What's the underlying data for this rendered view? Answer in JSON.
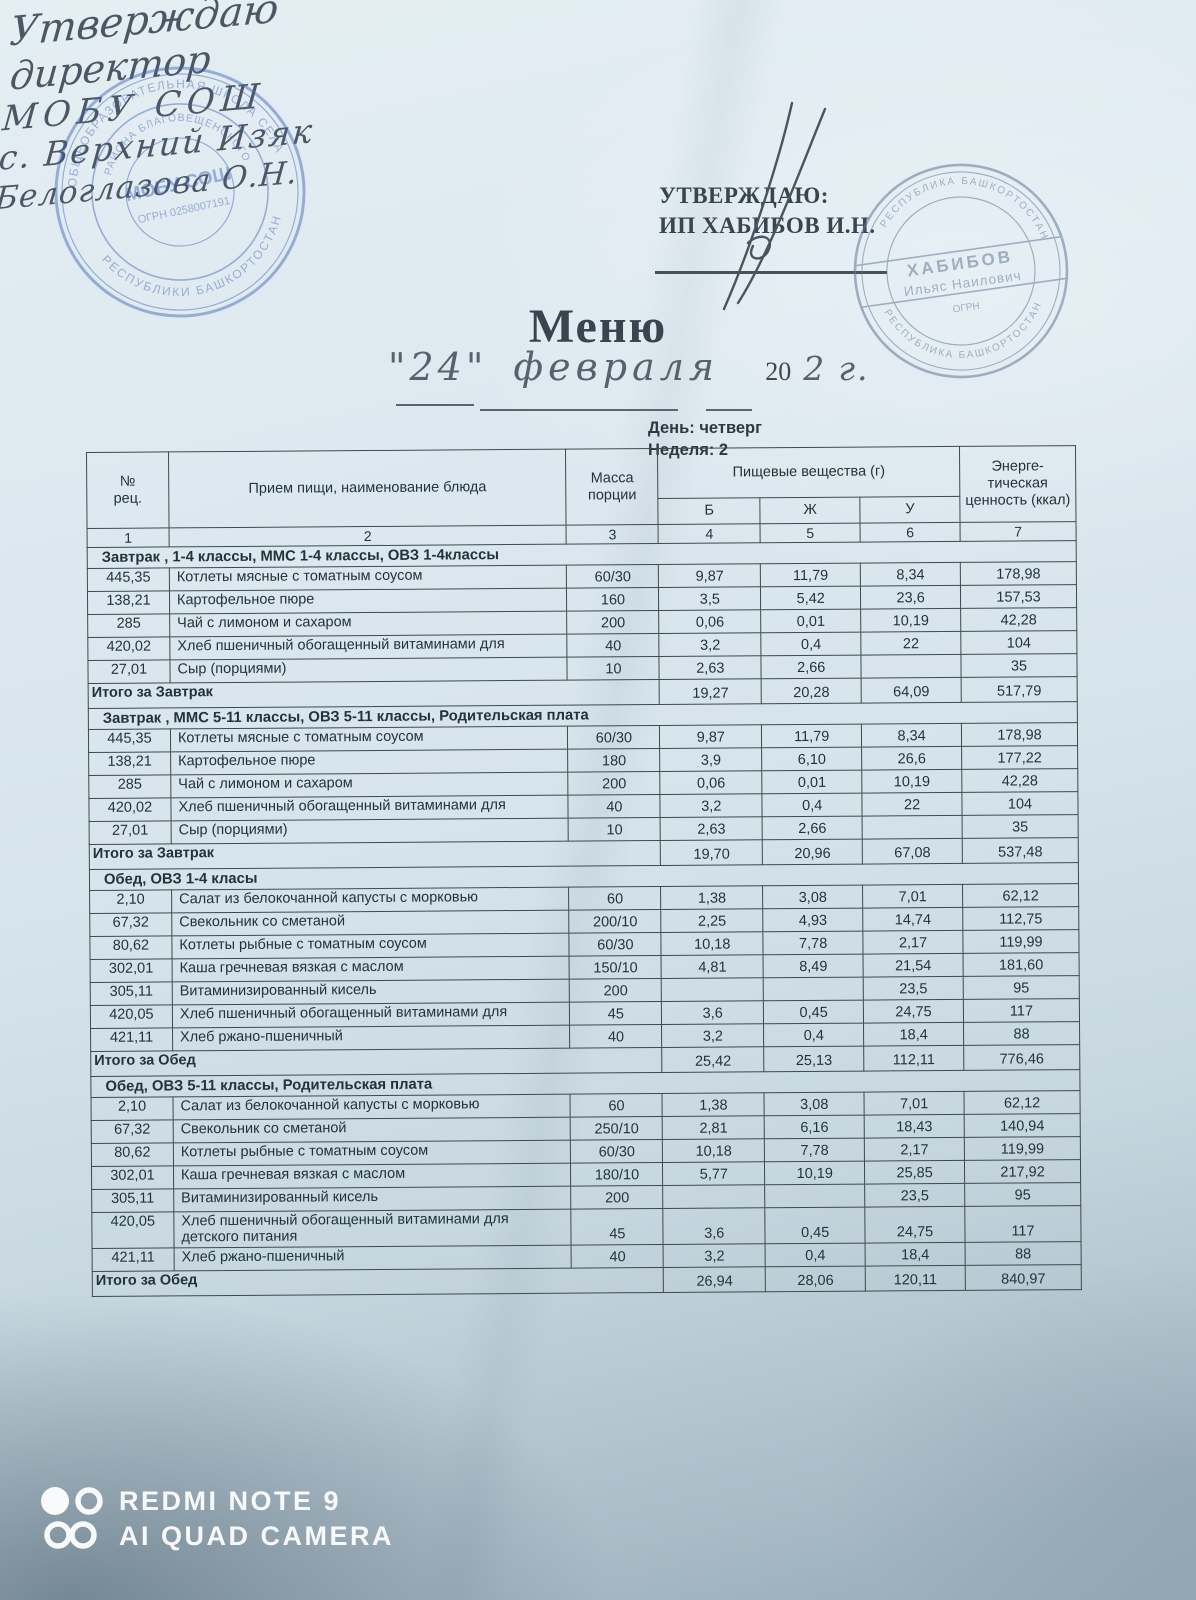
{
  "handwriting": {
    "line1": "Утверждаю",
    "line2": "директор",
    "line3": "МОБУ СОШ",
    "line4": "с. Верхний Изяк",
    "line5": "Белоглазова О.Н."
  },
  "approval": {
    "line1": "УТВЕРЖДАЮ:",
    "line2": "ИП ХАБИБОВ И.Н."
  },
  "title": "Меню",
  "date": {
    "day": "\"24\"",
    "month": "февраля",
    "year_printed": "20",
    "year_written": "2",
    "year_mark": "г."
  },
  "meta": {
    "day": "День: четверг",
    "week": "Неделя: 2"
  },
  "stamps": {
    "school": {
      "ring_top": "ОБЩЕОБРАЗОВАТЕЛЬНАЯ ШКОЛА СЕЛА",
      "ring_bottom": "РЕСПУБЛИКИ БАШКОРТОСТАН",
      "ring_inner": "РАЙОНА БЛАГОВЕЩЕНСКОГО",
      "center": "МОБУ СОШ",
      "ogrn": "ОГРН 0258007191"
    },
    "ip": {
      "band_line1": "ХАБИБОВ",
      "band_line2": "Ильяс Наилович",
      "small_line": "ОГРН",
      "ring_bottom": "РЕСПУБЛИКА БАШКОРТОСТАН"
    }
  },
  "table": {
    "header": {
      "col_no": "№\nрец.",
      "col_dish": "Прием пищи, наименование блюда",
      "col_mass": "Масса порции",
      "col_group": "Пищевые вещества (г)",
      "col_b": "Б",
      "col_zh": "Ж",
      "col_u": "У",
      "col_energy": "Энерге- тическая ценность (ккал)",
      "index_row": [
        "1",
        "2",
        "3",
        "4",
        "5",
        "6",
        "7"
      ]
    },
    "sections": [
      {
        "title": "Завтрак , 1-4 классы, ММС 1-4 классы, ОВЗ 1-4классы",
        "rows": [
          [
            "445,35",
            "Котлеты мясные с томатным соусом",
            "60/30",
            "9,87",
            "11,79",
            "8,34",
            "178,98"
          ],
          [
            "138,21",
            "Картофельное пюре",
            "160",
            "3,5",
            "5,42",
            "23,6",
            "157,53"
          ],
          [
            "285",
            "Чай с лимоном и сахаром",
            "200",
            "0,06",
            "0,01",
            "10,19",
            "42,28"
          ],
          [
            "420,02",
            "Хлеб пшеничный обогащенный витаминами для",
            "40",
            "3,2",
            "0,4",
            "22",
            "104"
          ],
          [
            "27,01",
            "Сыр (порциями)",
            "10",
            "2,63",
            "2,66",
            "",
            "35"
          ]
        ],
        "total": {
          "label": "Итого за Завтрак",
          "values": [
            "19,27",
            "20,28",
            "64,09",
            "517,79"
          ]
        }
      },
      {
        "title": "Завтрак , ММС 5-11 классы, ОВЗ 5-11 классы, Родительская плата",
        "rows": [
          [
            "445,35",
            "Котлеты мясные с томатным соусом",
            "60/30",
            "9,87",
            "11,79",
            "8,34",
            "178,98"
          ],
          [
            "138,21",
            "Картофельное пюре",
            "180",
            "3,9",
            "6,10",
            "26,6",
            "177,22"
          ],
          [
            "285",
            "Чай с лимоном и сахаром",
            "200",
            "0,06",
            "0,01",
            "10,19",
            "42,28"
          ],
          [
            "420,02",
            "Хлеб пшеничный обогащенный витаминами для",
            "40",
            "3,2",
            "0,4",
            "22",
            "104"
          ],
          [
            "27,01",
            "Сыр (порциями)",
            "10",
            "2,63",
            "2,66",
            "",
            "35"
          ]
        ],
        "total": {
          "label": "Итого за Завтрак",
          "values": [
            "19,70",
            "20,96",
            "67,08",
            "537,48"
          ]
        }
      },
      {
        "title": "Обед, ОВЗ 1-4 класы",
        "rows": [
          [
            "2,10",
            "Салат из белокочанной капусты с морковью",
            "60",
            "1,38",
            "3,08",
            "7,01",
            "62,12"
          ],
          [
            "67,32",
            "Свекольник со сметаной",
            "200/10",
            "2,25",
            "4,93",
            "14,74",
            "112,75"
          ],
          [
            "80,62",
            "Котлеты рыбные с томатным соусом",
            "60/30",
            "10,18",
            "7,78",
            "2,17",
            "119,99"
          ],
          [
            "302,01",
            "Каша гречневая вязкая с маслом",
            "150/10",
            "4,81",
            "8,49",
            "21,54",
            "181,60"
          ],
          [
            "305,11",
            "Витаминизированный кисель",
            "200",
            "",
            "",
            "23,5",
            "95"
          ],
          [
            "420,05",
            "Хлеб пшеничный обогащенный витаминами для",
            "45",
            "3,6",
            "0,45",
            "24,75",
            "117"
          ],
          [
            "421,11",
            "Хлеб ржано-пшеничный",
            "40",
            "3,2",
            "0,4",
            "18,4",
            "88"
          ]
        ],
        "total": {
          "label": "Итого за Обед",
          "values": [
            "25,42",
            "25,13",
            "112,11",
            "776,46"
          ]
        }
      },
      {
        "title": "Обед, ОВЗ 5-11 классы, Родительская плата",
        "rows": [
          [
            "2,10",
            "Салат из белокочанной капусты с морковью",
            "60",
            "1,38",
            "3,08",
            "7,01",
            "62,12"
          ],
          [
            "67,32",
            "Свекольник со сметаной",
            "250/10",
            "2,81",
            "6,16",
            "18,43",
            "140,94"
          ],
          [
            "80,62",
            "Котлеты рыбные с томатным соусом",
            "60/30",
            "10,18",
            "7,78",
            "2,17",
            "119,99"
          ],
          [
            "302,01",
            "Каша гречневая вязкая с маслом",
            "180/10",
            "5,77",
            "10,19",
            "25,85",
            "217,92"
          ],
          [
            "305,11",
            "Витаминизированный кисель",
            "200",
            "",
            "",
            "23,5",
            "95"
          ],
          [
            "420,05",
            "Хлеб пшеничный обогащенный витаминами для детского питания",
            "45",
            "3,6",
            "0,45",
            "24,75",
            "117"
          ],
          [
            "421,11",
            "Хлеб ржано-пшеничный",
            "40",
            "3,2",
            "0,4",
            "18,4",
            "88"
          ]
        ],
        "total": {
          "label": "Итого за Обед",
          "values": [
            "26,94",
            "28,06",
            "120,11",
            "840,97"
          ]
        }
      }
    ]
  },
  "watermark": {
    "line1": "REDMI NOTE 9",
    "line2": "AI QUAD CAMERA"
  }
}
